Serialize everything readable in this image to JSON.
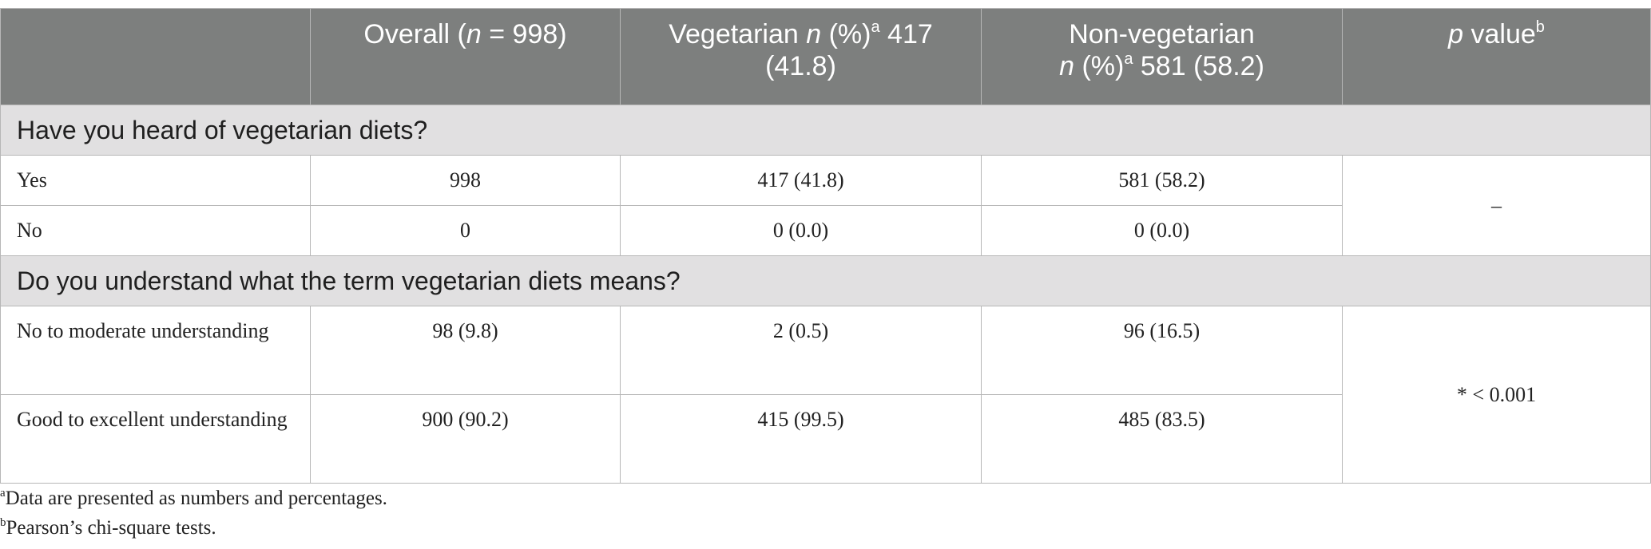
{
  "header": {
    "col0": "",
    "col1_pre": "Overall (",
    "col1_n": "n",
    "col1_post": " = 998)",
    "col2_pre": "Vegetarian ",
    "col2_n": "n",
    "col2_mid": " (%)",
    "col2_sup": "a",
    "col2_post": " 417 (41.8)",
    "col3_pre": "Non-vegetarian ",
    "col3_n": "n",
    "col3_mid": " (%)",
    "col3_sup": "a",
    "col3_post": " 581 (58.2)",
    "col4_p": "p",
    "col4_post": " value",
    "col4_sup": "b"
  },
  "sections": [
    {
      "title": "Have you heard of vegetarian diets?",
      "p_value": "–",
      "rows": [
        {
          "label": "Yes",
          "overall": "998",
          "veg": "417 (41.8)",
          "nonveg": "581 (58.2)"
        },
        {
          "label": "No",
          "overall": "0",
          "veg": "0 (0.0)",
          "nonveg": "0 (0.0)"
        }
      ]
    },
    {
      "title": "Do you understand what the term vegetarian diets means?",
      "p_value": "* < 0.001",
      "rows": [
        {
          "label": "No to moderate understanding",
          "overall": "98 (9.8)",
          "veg": "2 (0.5)",
          "nonveg": "96 (16.5)"
        },
        {
          "label": "Good to excellent understanding",
          "overall": "900 (90.2)",
          "veg": "415 (99.5)",
          "nonveg": "485 (83.5)"
        }
      ]
    }
  ],
  "footnotes": [
    {
      "mark": "a",
      "text": "Data are presented as numbers and percentages."
    },
    {
      "mark": "b",
      "text": "Pearson’s chi-square tests."
    }
  ]
}
